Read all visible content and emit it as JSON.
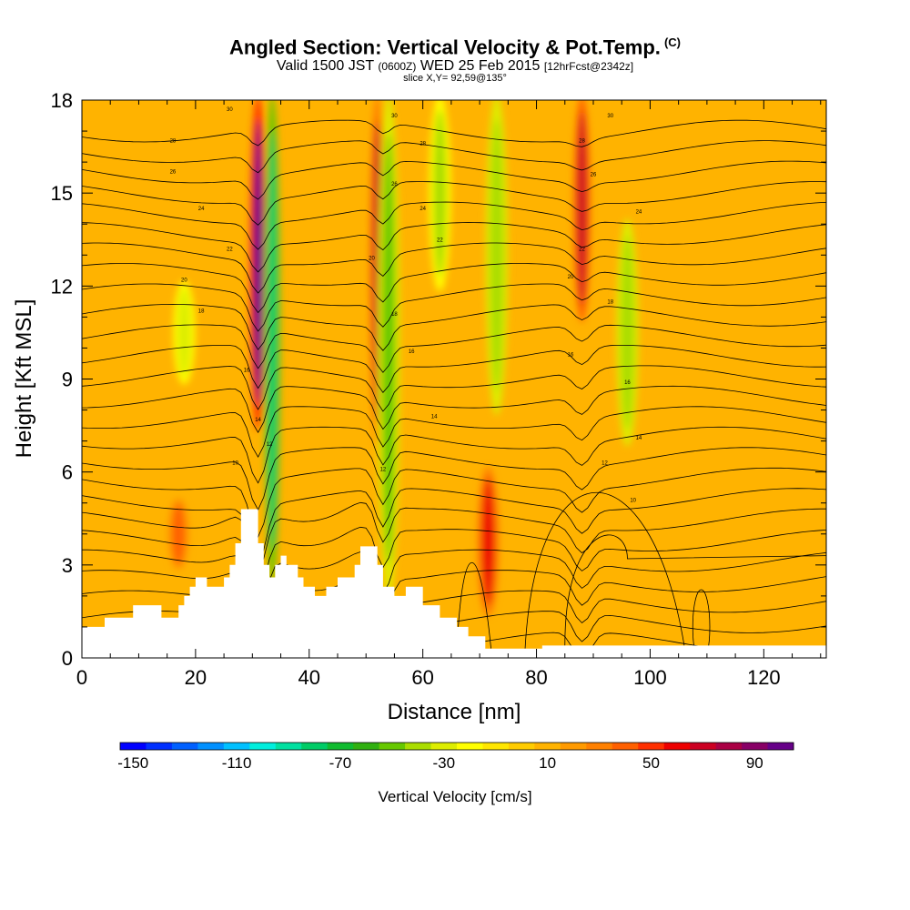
{
  "header": {
    "title": "Angled Section: Vertical Velocity & Pot.Temp.",
    "title_unit": "(C)",
    "subtitle_a": "Valid 1500 JST",
    "subtitle_b": "(0600Z)",
    "subtitle_c": "WED 25 Feb 2015",
    "subtitle_d": "[12hrFcst@2342z]",
    "slice": "slice X,Y= 92,59@135°"
  },
  "chart_data": {
    "type": "heatmap",
    "xlabel": "Distance [nm]",
    "ylabel": "Height [Kft MSL]",
    "xlim": [
      0,
      131
    ],
    "ylim": [
      0,
      18
    ],
    "x_ticks": [
      "0",
      "20",
      "40",
      "60",
      "80",
      "100",
      "120"
    ],
    "y_ticks": [
      "0",
      "3",
      "6",
      "9",
      "12",
      "15",
      "18"
    ],
    "colorbar": {
      "label": "Vertical Velocity [cm/s]",
      "tick_labels": [
        "-150",
        "-110",
        "-70",
        "-30",
        "10",
        "50",
        "90"
      ],
      "colors": [
        "#0000ff",
        "#0030ff",
        "#0060ff",
        "#0090ff",
        "#00c0ff",
        "#00eedd",
        "#00e0a0",
        "#00cc66",
        "#10bb30",
        "#30b010",
        "#66c800",
        "#aadd00",
        "#dded00",
        "#ffff00",
        "#ffe600",
        "#ffcc00",
        "#ffb300",
        "#ff9a00",
        "#ff8000",
        "#ff6000",
        "#ff3000",
        "#ee0000",
        "#cc0022",
        "#aa0044",
        "#880066",
        "#660088"
      ]
    },
    "background_value_cms": 15,
    "velocity_features": [
      {
        "x": 31,
        "y_bottom": 7.5,
        "y_top": 18,
        "value": 100
      },
      {
        "x": 33.5,
        "y_bottom": 2.5,
        "y_top": 18,
        "value": -80
      },
      {
        "x": 52,
        "y_bottom": 7,
        "y_top": 18,
        "value": 70
      },
      {
        "x": 54,
        "y_bottom": 2,
        "y_top": 18,
        "value": -45
      },
      {
        "x": 63,
        "y_bottom": 12,
        "y_top": 18,
        "value": -35
      },
      {
        "x": 73,
        "y_bottom": 8,
        "y_top": 18,
        "value": -40
      },
      {
        "x": 71.5,
        "y_bottom": 1.5,
        "y_top": 6,
        "value": 60
      },
      {
        "x": 88,
        "y_bottom": 11,
        "y_top": 18,
        "value": 75
      },
      {
        "x": 96,
        "y_bottom": 7,
        "y_top": 14,
        "value": -40
      },
      {
        "x": 17,
        "y_bottom": 3,
        "y_top": 5,
        "value": 40
      },
      {
        "x": 18,
        "y_bottom": 9,
        "y_top": 12,
        "value": -25
      }
    ],
    "terrain_kft": [
      [
        0,
        1
      ],
      [
        4,
        1
      ],
      [
        4,
        1.3
      ],
      [
        9,
        1.3
      ],
      [
        9,
        1.7
      ],
      [
        14,
        1.7
      ],
      [
        14,
        1.3
      ],
      [
        17,
        1.3
      ],
      [
        17,
        1.7
      ],
      [
        18,
        1.7
      ],
      [
        18,
        2
      ],
      [
        19,
        2
      ],
      [
        19,
        2.3
      ],
      [
        20,
        2.3
      ],
      [
        20,
        2.6
      ],
      [
        22,
        2.6
      ],
      [
        22,
        2.3
      ],
      [
        25,
        2.3
      ],
      [
        25,
        2.6
      ],
      [
        26,
        2.6
      ],
      [
        26,
        3
      ],
      [
        27,
        3
      ],
      [
        27,
        3.7
      ],
      [
        28,
        3.7
      ],
      [
        28,
        4.8
      ],
      [
        31,
        4.8
      ],
      [
        31,
        3.7
      ],
      [
        32,
        3.7
      ],
      [
        32,
        3
      ],
      [
        33,
        3
      ],
      [
        33,
        2.6
      ],
      [
        34,
        2.6
      ],
      [
        34,
        3
      ],
      [
        35,
        3
      ],
      [
        35,
        3.3
      ],
      [
        36,
        3.3
      ],
      [
        36,
        3
      ],
      [
        38,
        3
      ],
      [
        38,
        2.6
      ],
      [
        39,
        2.6
      ],
      [
        39,
        2.3
      ],
      [
        41,
        2.3
      ],
      [
        41,
        2
      ],
      [
        43,
        2
      ],
      [
        43,
        2.3
      ],
      [
        45,
        2.3
      ],
      [
        45,
        2.6
      ],
      [
        48,
        2.6
      ],
      [
        48,
        3
      ],
      [
        49,
        3
      ],
      [
        49,
        3.6
      ],
      [
        52,
        3.6
      ],
      [
        52,
        3
      ],
      [
        53,
        3
      ],
      [
        53,
        2.3
      ],
      [
        55,
        2.3
      ],
      [
        55,
        2
      ],
      [
        57,
        2
      ],
      [
        57,
        2.3
      ],
      [
        60,
        2.3
      ],
      [
        60,
        1.7
      ],
      [
        63,
        1.7
      ],
      [
        63,
        1.3
      ],
      [
        66,
        1.3
      ],
      [
        66,
        1
      ],
      [
        68,
        1
      ],
      [
        68,
        0.7
      ],
      [
        71,
        0.7
      ],
      [
        71,
        0.3
      ],
      [
        81,
        0.3
      ],
      [
        81,
        0.4
      ],
      [
        131,
        0.4
      ]
    ],
    "contour_labels": [
      {
        "x": 26,
        "y": 17.7,
        "text": "30"
      },
      {
        "x": 16,
        "y": 16.7,
        "text": "28"
      },
      {
        "x": 16,
        "y": 15.7,
        "text": "26"
      },
      {
        "x": 21,
        "y": 14.5,
        "text": "24"
      },
      {
        "x": 26,
        "y": 13.2,
        "text": "22"
      },
      {
        "x": 18,
        "y": 12.2,
        "text": "20"
      },
      {
        "x": 21,
        "y": 11.2,
        "text": "18"
      },
      {
        "x": 29,
        "y": 9.3,
        "text": "16"
      },
      {
        "x": 31,
        "y": 7.7,
        "text": "14"
      },
      {
        "x": 33,
        "y": 6.9,
        "text": "12"
      },
      {
        "x": 27,
        "y": 6.3,
        "text": "10"
      },
      {
        "x": 55,
        "y": 17.5,
        "text": "30"
      },
      {
        "x": 60,
        "y": 16.6,
        "text": "28"
      },
      {
        "x": 55,
        "y": 15.3,
        "text": "26"
      },
      {
        "x": 60,
        "y": 14.5,
        "text": "24"
      },
      {
        "x": 63,
        "y": 13.5,
        "text": "22"
      },
      {
        "x": 51,
        "y": 12.9,
        "text": "20"
      },
      {
        "x": 55,
        "y": 11.1,
        "text": "18"
      },
      {
        "x": 58,
        "y": 9.9,
        "text": "16"
      },
      {
        "x": 62,
        "y": 7.8,
        "text": "14"
      },
      {
        "x": 53,
        "y": 6.1,
        "text": "12"
      },
      {
        "x": 93,
        "y": 17.5,
        "text": "30"
      },
      {
        "x": 88,
        "y": 16.7,
        "text": "28"
      },
      {
        "x": 90,
        "y": 15.6,
        "text": "26"
      },
      {
        "x": 98,
        "y": 14.4,
        "text": "24"
      },
      {
        "x": 88,
        "y": 13.2,
        "text": "22"
      },
      {
        "x": 86,
        "y": 12.3,
        "text": "20"
      },
      {
        "x": 93,
        "y": 11.5,
        "text": "18"
      },
      {
        "x": 86,
        "y": 9.8,
        "text": "16"
      },
      {
        "x": 96,
        "y": 8.9,
        "text": "16"
      },
      {
        "x": 98,
        "y": 7.1,
        "text": "14"
      },
      {
        "x": 92,
        "y": 6.3,
        "text": "12"
      },
      {
        "x": 97,
        "y": 5.1,
        "text": "10"
      }
    ]
  }
}
